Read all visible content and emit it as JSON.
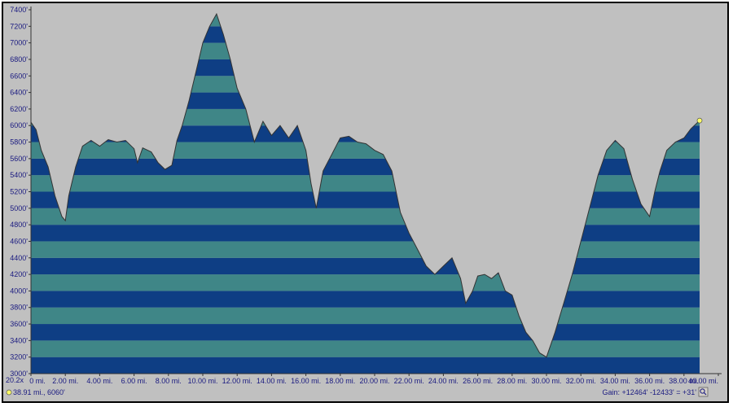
{
  "chart_data": {
    "type": "area",
    "title": "",
    "xlabel": "",
    "ylabel": "",
    "xlim": [
      0,
      40
    ],
    "ylim": [
      3000,
      7400
    ],
    "grid": false,
    "band_step": 200,
    "x_ticks": [
      0,
      2,
      4,
      6,
      8,
      10,
      12,
      14,
      16,
      18,
      20,
      22,
      24,
      26,
      28,
      30,
      32,
      34,
      36,
      38,
      40
    ],
    "x_tick_labels": [
      "0 mi.",
      "2.00 mi.",
      "4.00 mi.",
      "6.00 mi.",
      "8.00 mi.",
      "10.00 mi.",
      "12.00 mi.",
      "14.00 mi.",
      "16.00 mi.",
      "18.00 mi.",
      "20.00 mi.",
      "22.00 mi.",
      "24.00 mi.",
      "26.00 mi.",
      "28.00 mi.",
      "30.00 mi.",
      "32.00 mi.",
      "34.00 mi.",
      "36.00 mi.",
      "38.00 mi.",
      "40.00 mi."
    ],
    "y_ticks": [
      3000,
      3200,
      3400,
      3600,
      3800,
      4000,
      4200,
      4400,
      4600,
      4800,
      5000,
      5200,
      5400,
      5600,
      5800,
      6000,
      6200,
      6400,
      6600,
      6800,
      7000,
      7200,
      7400
    ],
    "y_tick_labels": [
      "3000'",
      "3200'",
      "3400'",
      "3600'",
      "3800'",
      "4000'",
      "4200'",
      "4400'",
      "4600'",
      "4800'",
      "5000'",
      "5200'",
      "5400'",
      "5600'",
      "5800'",
      "6000'",
      "6200'",
      "6400'",
      "6600'",
      "6800'",
      "7000'",
      "7200'",
      "7400'"
    ],
    "series": [
      {
        "x": [
          0,
          0.3,
          0.6,
          1.0,
          1.4,
          1.8,
          2.0,
          2.2,
          2.6,
          3.0,
          3.5,
          4.0,
          4.5,
          5.0,
          5.5,
          6.0,
          6.2,
          6.5,
          7.0,
          7.4,
          7.8,
          8.2,
          8.5,
          8.8,
          9.2,
          9.6,
          10.0,
          10.4,
          10.8,
          11.2,
          11.6,
          12.0,
          12.5,
          13.0,
          13.5,
          14.0,
          14.5,
          15.0,
          15.5,
          16.0,
          16.3,
          16.6,
          17.0,
          17.5,
          18.0,
          18.5,
          19.0,
          19.5,
          20.0,
          20.5,
          21.0,
          21.5,
          22.0,
          22.5,
          23.0,
          23.5,
          24.0,
          24.5,
          25.0,
          25.3,
          25.7,
          26.0,
          26.4,
          26.8,
          27.2,
          27.6,
          28.0,
          28.4,
          28.8,
          29.2,
          29.6,
          30.0,
          30.5,
          31.0,
          31.5,
          32.0,
          32.5,
          33.0,
          33.5,
          34.0,
          34.5,
          35.0,
          35.5,
          36.0,
          36.3,
          36.6,
          37.0,
          37.5,
          38.0,
          38.4,
          38.91
        ],
        "y": [
          6040,
          5950,
          5700,
          5500,
          5150,
          4900,
          4850,
          5150,
          5500,
          5750,
          5820,
          5750,
          5830,
          5800,
          5820,
          5720,
          5550,
          5730,
          5680,
          5550,
          5470,
          5520,
          5820,
          6000,
          6300,
          6650,
          7000,
          7200,
          7350,
          7100,
          6800,
          6450,
          6200,
          5800,
          6050,
          5880,
          6000,
          5850,
          6000,
          5700,
          5300,
          5000,
          5450,
          5650,
          5850,
          5870,
          5800,
          5780,
          5700,
          5650,
          5450,
          4950,
          4700,
          4500,
          4300,
          4200,
          4300,
          4400,
          4150,
          3850,
          4000,
          4180,
          4200,
          4150,
          4220,
          4000,
          3950,
          3700,
          3500,
          3400,
          3250,
          3200,
          3500,
          3850,
          4200,
          4600,
          5000,
          5400,
          5700,
          5820,
          5720,
          5350,
          5050,
          4900,
          5200,
          5450,
          5700,
          5800,
          5850,
          5960,
          6060
        ]
      }
    ],
    "endpoint_marker": {
      "x": 38.91,
      "y": 6060,
      "color": "#ffff66"
    },
    "colors": {
      "band_dark": "#0e3e84",
      "band_light": "#3f8687",
      "background": "#c0c0c0",
      "outline": "#333333",
      "label": "#1a1a80"
    }
  },
  "status": {
    "zoom": "20.2x",
    "cursor_readout": "38.91 mi., 6060'",
    "gain_summary": "Gain: +12464' -12433' = +31'",
    "zoom_icon": "magnifier-icon"
  }
}
